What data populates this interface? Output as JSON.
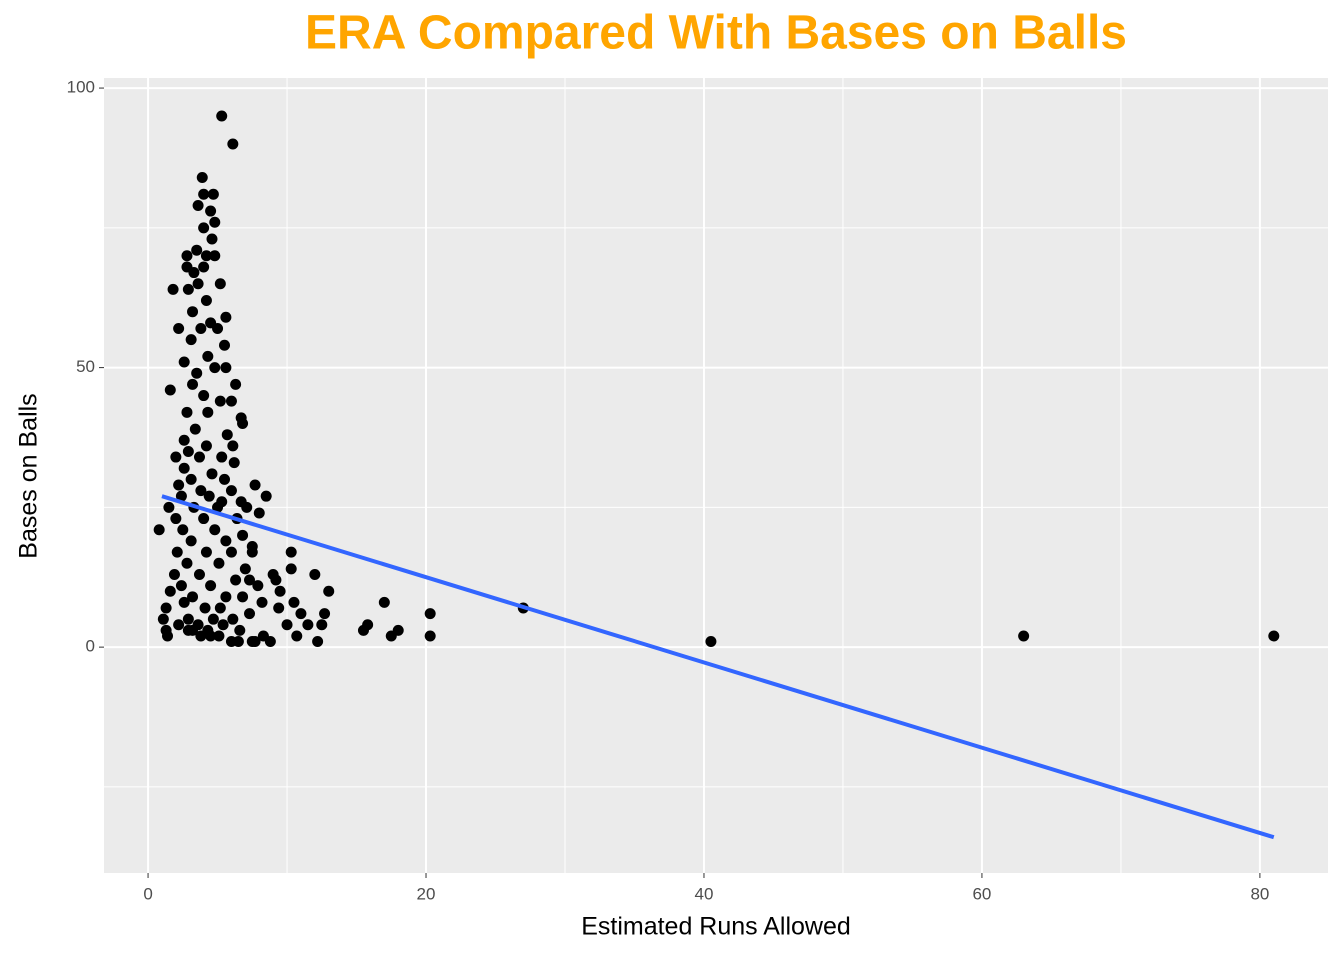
{
  "chart_data": {
    "type": "scatter",
    "title": "ERA Compared With Bases on Balls",
    "x_label": "Estimated Runs Allowed",
    "y_label": "Bases on Balls",
    "xlim": [
      -3.17,
      84.9
    ],
    "ylim": [
      -40.4,
      101.8
    ],
    "xticks": [
      0,
      20,
      40,
      60,
      80
    ],
    "yticks": [
      0,
      50,
      100
    ],
    "minor_xticks": [
      10,
      30,
      50,
      70
    ],
    "minor_yticks": [
      -25,
      25,
      75
    ],
    "grid": true,
    "color": "#000000",
    "x": [
      81,
      63,
      40.5,
      27,
      20.3,
      20.3,
      18,
      17.5,
      17,
      15.8,
      15.5,
      13,
      12.7,
      12.5,
      12.2,
      12,
      11.5,
      11,
      10.7,
      10.5,
      10.3,
      10.3,
      10,
      9.5,
      9.4,
      9.2,
      9,
      8.8,
      8.5,
      8.3,
      8.2,
      8,
      7.7,
      7.5,
      7.5,
      7.3,
      5.3,
      6.1,
      3.9,
      4.7,
      4,
      4.5,
      3.6,
      4.8,
      4,
      4.6,
      2.8,
      4.2,
      4.8,
      3.5,
      2.8,
      3.3,
      4,
      5.2,
      1.8,
      2.9,
      3.6,
      4.2,
      3.2,
      5.6,
      4.5,
      2.2,
      3.8,
      5,
      3.1,
      5.5,
      4.3,
      2.6,
      4.8,
      3.5,
      5.6,
      1.6,
      3.2,
      6.3,
      4,
      5.2,
      6,
      2.8,
      4.3,
      6.7,
      6.8,
      3.4,
      5.7,
      2.6,
      4.2,
      6.1,
      2.9,
      3.7,
      5.3,
      6.2,
      2,
      2.6,
      4.6,
      3.1,
      5.5,
      2.2,
      3.8,
      6,
      2.4,
      4.4,
      5.3,
      6.7,
      1.5,
      3.3,
      5,
      7.1,
      2,
      4,
      6.4,
      0.8,
      2.5,
      4.8,
      6.8,
      3.1,
      5.6,
      2.1,
      4.2,
      6,
      7.5,
      2.8,
      5.1,
      7,
      1.9,
      3.7,
      6.3,
      2.4,
      4.5,
      7.9,
      1.6,
      3.2,
      5.6,
      6.8,
      2.6,
      4.1,
      1.3,
      5.2,
      7.3,
      1.1,
      2.9,
      4.7,
      6.1,
      2.2,
      3.6,
      5.4,
      1.3,
      2.9,
      4.3,
      6.6,
      1.4,
      3.8,
      5.1,
      6,
      6.5,
      7.7,
      4.5,
      3.2
    ],
    "values": [
      2,
      2,
      1,
      7,
      6,
      2,
      3,
      2,
      8,
      4,
      3,
      10,
      6,
      4,
      1,
      13,
      4,
      6,
      2,
      8,
      14,
      17,
      4,
      10,
      7,
      12,
      13,
      1,
      27,
      2,
      8,
      24,
      29,
      18,
      1,
      12,
      95,
      90,
      84,
      81,
      81,
      78,
      79,
      76,
      75,
      73,
      70,
      70,
      70,
      71,
      68,
      67,
      68,
      65,
      64,
      64,
      65,
      62,
      60,
      59,
      58,
      57,
      57,
      57,
      55,
      54,
      52,
      51,
      50,
      49,
      50,
      46,
      47,
      47,
      45,
      44,
      44,
      42,
      42,
      41,
      40,
      39,
      38,
      37,
      36,
      36,
      35,
      34,
      34,
      33,
      34,
      32,
      31,
      30,
      30,
      29,
      28,
      28,
      27,
      27,
      26,
      26,
      25,
      25,
      25,
      25,
      23,
      23,
      23,
      21,
      21,
      21,
      20,
      19,
      19,
      17,
      17,
      17,
      17,
      15,
      15,
      14,
      13,
      13,
      12,
      11,
      11,
      11,
      10,
      9,
      9,
      9,
      8,
      7,
      7,
      7,
      6,
      5,
      5,
      5,
      5,
      4,
      4,
      4,
      3,
      3,
      3,
      3,
      2,
      2,
      2,
      1,
      1,
      1,
      2,
      3
    ],
    "trend": {
      "x": [
        1,
        81
      ],
      "values": [
        27,
        -34
      ],
      "color": "#3366ff"
    }
  }
}
